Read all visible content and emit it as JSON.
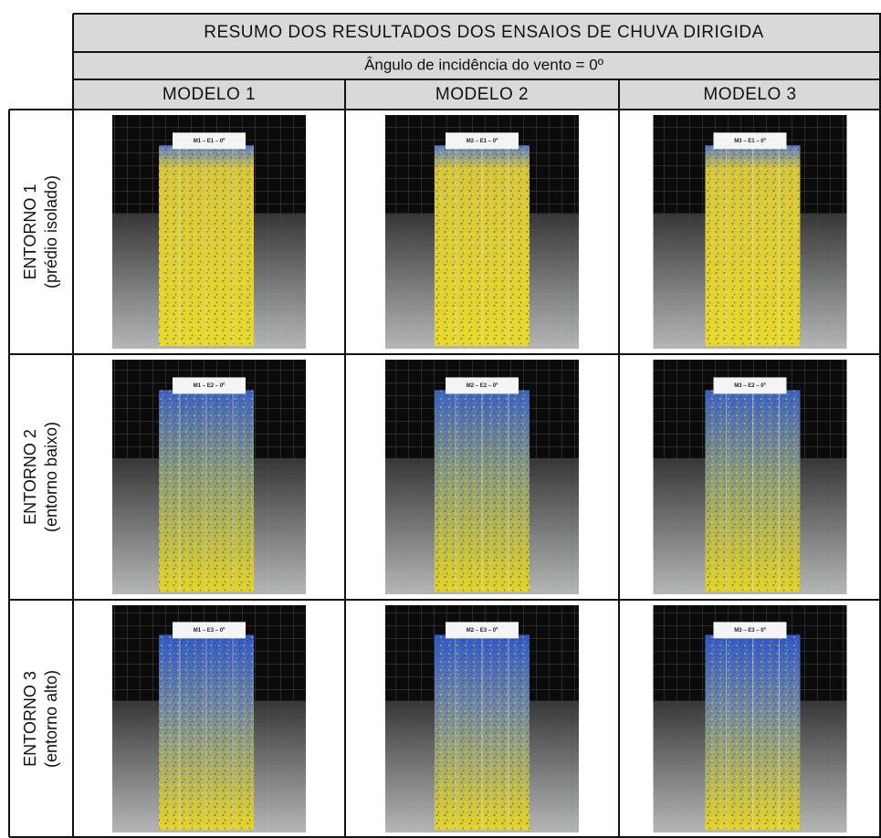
{
  "header": {
    "title": "RESUMO DOS RESULTADOS DOS ENSAIOS DE CHUVA DIRIGIDA",
    "subtitle": "Ângulo de incidência do vento = 0º"
  },
  "columns": [
    "MODELO 1",
    "MODELO 2",
    "MODELO 3"
  ],
  "rows": [
    {
      "label": "ENTORNO 1",
      "sublabel": "(prédio isolado)",
      "photos": [
        "M1 – E1 – 0º",
        "M2 – E1 – 0º",
        "M3 – E1 – 0º"
      ]
    },
    {
      "label": "ENTORNO 2",
      "sublabel": "(entorno baixo)",
      "photos": [
        "M1 – E2 – 0º",
        "M2 – E2 – 0º",
        "M3 – E2 – 0º"
      ]
    },
    {
      "label": "ENTORNO 3",
      "sublabel": "(entorno alto)",
      "photos": [
        "M1 – E3 – 0º",
        "M2 – E3 – 0º",
        "M3 – E3 – 0º"
      ]
    }
  ]
}
